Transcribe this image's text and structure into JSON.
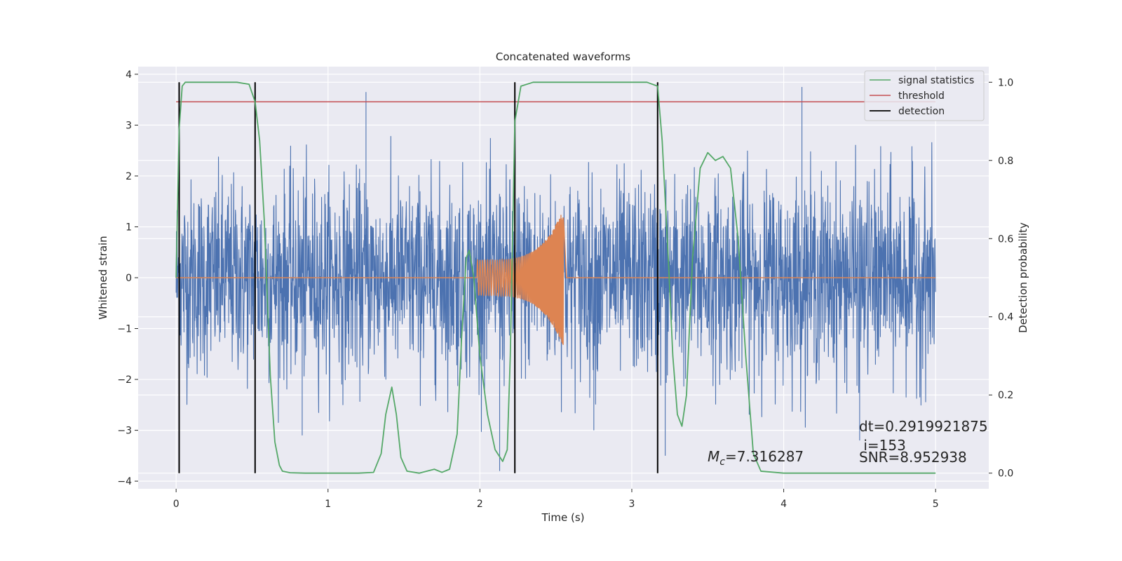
{
  "chart_data": {
    "type": "line",
    "title": "Concatenated waveforms",
    "xlabel": "Time (s)",
    "ylabel_left": "Whitened strain",
    "ylabel_right": "Detection probability",
    "xlim": [
      -0.25,
      5.35
    ],
    "ylim_left": [
      -4.15,
      4.15
    ],
    "ylim_right": [
      -0.04,
      1.04
    ],
    "xticks": [
      0,
      1,
      2,
      3,
      4,
      5
    ],
    "yticks_left": [
      -4,
      -3,
      -2,
      -1,
      0,
      1,
      2,
      3,
      4
    ],
    "yticks_right": [
      0.0,
      0.2,
      0.4,
      0.6,
      0.8,
      1.0
    ],
    "grid": true,
    "legend_placement": "top-right",
    "colors": {
      "plot_bg": "#EAEAF2",
      "grid": "#FFFFFF",
      "strain": "#4C72B0",
      "injected": "#DD8452",
      "signal": "#55A868",
      "threshold": "#C44E52",
      "detection": "#000000",
      "text": "#262626"
    },
    "series": [
      {
        "name": "signal statistics",
        "axis": "right",
        "x": [
          0.0,
          0.02,
          0.04,
          0.06,
          0.1,
          0.2,
          0.3,
          0.4,
          0.48,
          0.52,
          0.55,
          0.58,
          0.6,
          0.62,
          0.65,
          0.68,
          0.7,
          0.75,
          0.85,
          1.0,
          1.2,
          1.3,
          1.35,
          1.38,
          1.42,
          1.45,
          1.48,
          1.52,
          1.6,
          1.7,
          1.75,
          1.8,
          1.85,
          1.88,
          1.91,
          1.93,
          1.96,
          2.0,
          2.05,
          2.1,
          2.15,
          2.18,
          2.2,
          2.23,
          2.27,
          2.35,
          2.5,
          2.8,
          3.1,
          3.17,
          3.2,
          3.24,
          3.27,
          3.3,
          3.33,
          3.36,
          3.4,
          3.45,
          3.5,
          3.55,
          3.6,
          3.65,
          3.7,
          3.75,
          3.8,
          3.85,
          4.0,
          4.5,
          5.0
        ],
        "y": [
          0.5,
          0.88,
          0.99,
          1.0,
          1.0,
          1.0,
          1.0,
          1.0,
          0.995,
          0.95,
          0.85,
          0.65,
          0.45,
          0.25,
          0.08,
          0.02,
          0.005,
          0.001,
          0.0,
          0.0,
          0.0,
          0.002,
          0.05,
          0.15,
          0.22,
          0.15,
          0.04,
          0.005,
          0.0,
          0.01,
          0.002,
          0.01,
          0.1,
          0.35,
          0.55,
          0.57,
          0.5,
          0.3,
          0.15,
          0.06,
          0.03,
          0.06,
          0.3,
          0.9,
          0.99,
          1.0,
          1.0,
          1.0,
          1.0,
          0.99,
          0.85,
          0.55,
          0.3,
          0.15,
          0.12,
          0.2,
          0.55,
          0.78,
          0.82,
          0.8,
          0.81,
          0.78,
          0.6,
          0.3,
          0.05,
          0.005,
          0.0,
          0.0,
          0.0
        ]
      },
      {
        "name": "threshold",
        "axis": "right",
        "value": 0.95,
        "x_range": [
          0.0,
          5.0
        ]
      },
      {
        "name": "detection",
        "axis": "right",
        "x": [
          0.02,
          0.52,
          2.23,
          3.17
        ]
      },
      {
        "name": "",
        "axis": "left",
        "description_values": {
          "x_range": [
            0.0,
            5.0
          ],
          "noise_std": 1.0,
          "peak_min": -3.8,
          "peak_max": 3.65
        }
      },
      {
        "name": "",
        "axis": "left",
        "description_values": {
          "x_range": [
            1.98,
            2.55
          ],
          "start_amplitude": 0.35,
          "end_amplitude": 1.35
        }
      }
    ],
    "annotations": {
      "mc_symbol": "M",
      "mc_sub": "c",
      "mc_value": "=7.316287",
      "dt": "dt=0.2919921875",
      "i": " i=153",
      "snr": "SNR=8.952938"
    }
  }
}
